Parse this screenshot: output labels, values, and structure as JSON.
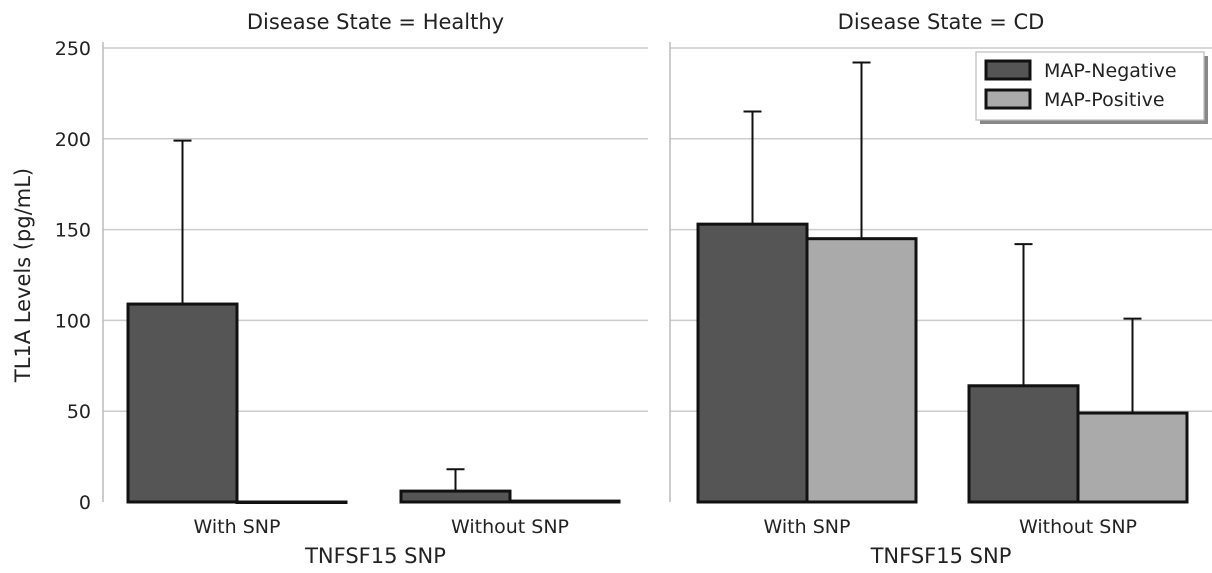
{
  "chart_data": {
    "type": "bar",
    "ylabel": "TL1A Levels (pg/mL)",
    "ylim": [
      0,
      250
    ],
    "yticks": [
      0,
      50,
      100,
      150,
      200,
      250
    ],
    "grid": true,
    "legend": {
      "placement": "top-right",
      "entries": [
        "MAP-Negative",
        "MAP-Positive"
      ]
    },
    "colors": {
      "MAP-Negative": "#555555",
      "MAP-Positive": "#aaaaaa",
      "edge": "#111111",
      "grid": "#cccccc",
      "axis": "#bbbbbb"
    },
    "panels": [
      {
        "title": "Disease State = Healthy",
        "xlabel": "TNFSF15 SNP",
        "categories": [
          "With SNP",
          "Without SNP"
        ],
        "series": [
          {
            "name": "MAP-Negative",
            "values": [
              109,
              6
            ],
            "error_upper": [
              199,
              18
            ]
          },
          {
            "name": "MAP-Positive",
            "values": [
              0,
              0.5
            ],
            "error_upper": [
              null,
              null
            ]
          }
        ]
      },
      {
        "title": "Disease State = CD",
        "xlabel": "TNFSF15 SNP",
        "categories": [
          "With SNP",
          "Without SNP"
        ],
        "series": [
          {
            "name": "MAP-Negative",
            "values": [
              153,
              64
            ],
            "error_upper": [
              215,
              142
            ]
          },
          {
            "name": "MAP-Positive",
            "values": [
              145,
              49
            ],
            "error_upper": [
              242,
              101
            ]
          }
        ]
      }
    ]
  }
}
